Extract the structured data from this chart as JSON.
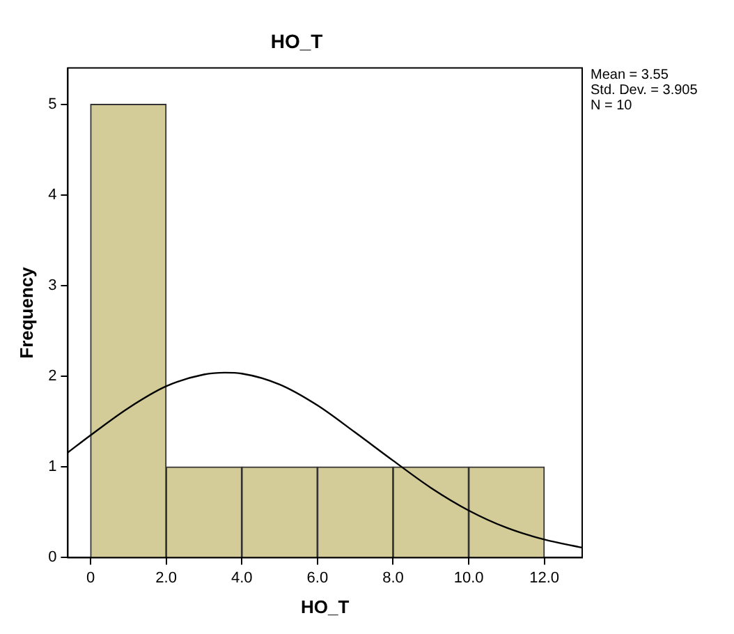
{
  "chart_data": {
    "type": "histogram",
    "title": "HO_T",
    "xlabel": "HO_T",
    "ylabel": "Frequency",
    "bins": [
      0,
      2,
      4,
      6,
      8,
      10,
      12
    ],
    "values": [
      5,
      1,
      1,
      1,
      1,
      1
    ],
    "color": "#d4cc98",
    "series": [
      {
        "type": "line",
        "color": "#000000",
        "x": [
          -0.6,
          0,
          1,
          2,
          3,
          3.55,
          4,
          5,
          6,
          7,
          8,
          9,
          10,
          11,
          12,
          13
        ],
        "values": [
          1.16,
          1.35,
          1.65,
          1.89,
          2.02,
          2.04,
          2.03,
          1.91,
          1.68,
          1.38,
          1.07,
          0.77,
          0.52,
          0.33,
          0.2,
          0.11
        ]
      }
    ],
    "xlim": [
      -0.6,
      13
    ],
    "xticks": [
      0,
      {
        "value": 2,
        "label": "2.0"
      },
      {
        "value": 4,
        "label": "4.0"
      },
      {
        "value": 6,
        "label": "6.0"
      },
      {
        "value": 8,
        "label": "8.0"
      },
      {
        "value": 10,
        "label": "10.0"
      },
      {
        "value": 12,
        "label": "12.0"
      }
    ],
    "ylim": [
      0,
      5.4
    ],
    "yticks": [
      0,
      1,
      2,
      3,
      4,
      5
    ],
    "annotations": [
      "Mean = 3.55",
      "Std. Dev. = 3.905",
      "N = 10"
    ]
  }
}
